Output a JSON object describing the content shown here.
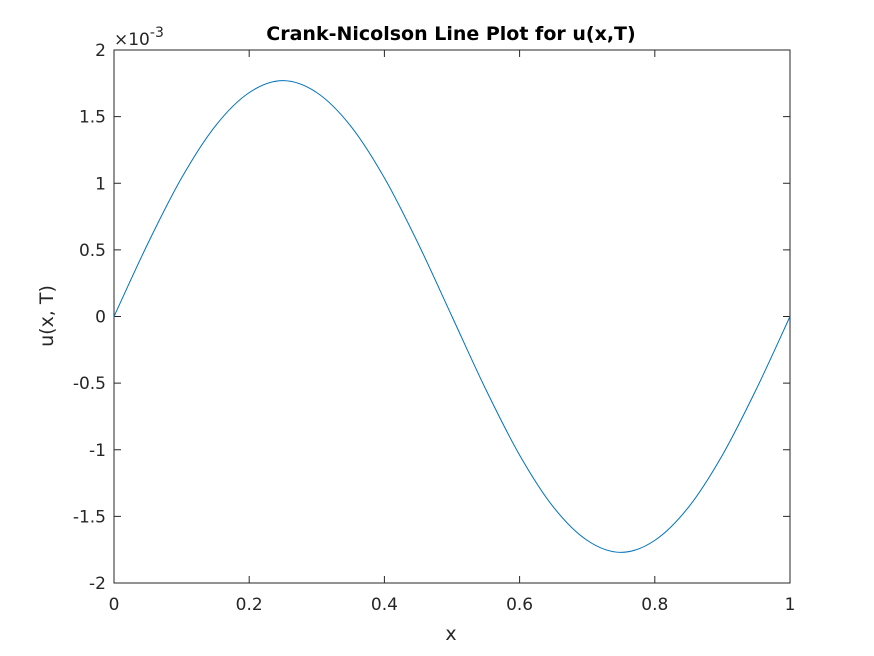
{
  "chart_data": {
    "type": "line",
    "title": "Crank-Nicolson Line Plot for u(x,T)",
    "xlabel": "x",
    "ylabel": "u(x, T)",
    "xlim": [
      0,
      1
    ],
    "ylim": [
      -0.002,
      0.002
    ],
    "y_exponent_label": "×10",
    "y_exponent_power": "-3",
    "x_ticks": [
      {
        "value": 0,
        "label": "0"
      },
      {
        "value": 0.2,
        "label": "0.2"
      },
      {
        "value": 0.4,
        "label": "0.4"
      },
      {
        "value": 0.6,
        "label": "0.6"
      },
      {
        "value": 0.8,
        "label": "0.8"
      },
      {
        "value": 1,
        "label": "1"
      }
    ],
    "y_ticks": [
      {
        "value": 0.002,
        "label": "2"
      },
      {
        "value": 0.0015,
        "label": "1.5"
      },
      {
        "value": 0.001,
        "label": "1"
      },
      {
        "value": 0.0005,
        "label": "0.5"
      },
      {
        "value": 0,
        "label": "0"
      },
      {
        "value": -0.0005,
        "label": "-0.5"
      },
      {
        "value": -0.001,
        "label": "-1"
      },
      {
        "value": -0.0015,
        "label": "-1.5"
      },
      {
        "value": -0.002,
        "label": "-2"
      }
    ],
    "grid": false,
    "line_color": "#0072bd",
    "series": [
      {
        "x": [
          0,
          0.05,
          0.1,
          0.15,
          0.2,
          0.25,
          0.3,
          0.35,
          0.4,
          0.45,
          0.5,
          0.55,
          0.6,
          0.65,
          0.7,
          0.75,
          0.8,
          0.85,
          0.9,
          0.95,
          1
        ],
        "values": [
          0,
          0.000547,
          0.00104,
          0.00143,
          0.00168,
          0.00177,
          0.00168,
          0.00143,
          0.00104,
          0.000547,
          0,
          -0.000547,
          -0.00104,
          -0.00143,
          -0.00168,
          -0.00177,
          -0.00168,
          -0.00143,
          -0.00104,
          -0.000547,
          0
        ]
      }
    ]
  }
}
